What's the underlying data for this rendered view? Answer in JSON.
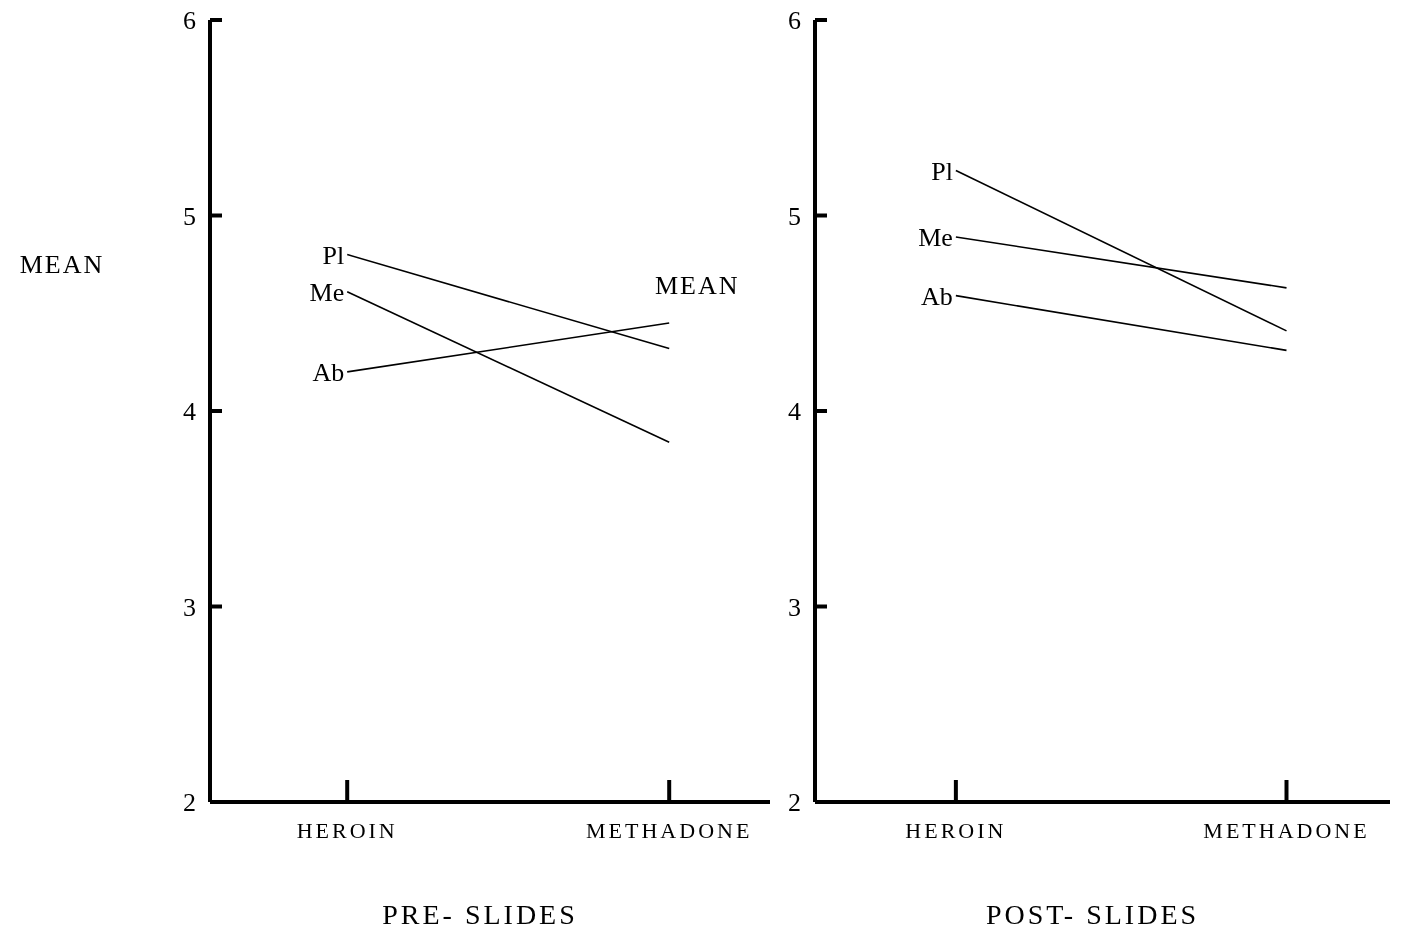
{
  "chart_data": [
    {
      "type": "line",
      "xlabel": "PRE- SLIDES",
      "ylabel": "MEAN",
      "categories": [
        "HEROIN",
        "METHADONE"
      ],
      "ylim": [
        2,
        6
      ],
      "yticks": [
        2,
        3,
        4,
        5,
        6
      ],
      "grid": false,
      "marker": "none",
      "line_style": "solid",
      "annotations": [
        "MEAN"
      ],
      "series": [
        {
          "name": "Pl",
          "color": "#000000",
          "values": [
            4.8,
            4.32
          ]
        },
        {
          "name": "Me",
          "color": "#000000",
          "values": [
            4.61,
            3.84
          ]
        },
        {
          "name": "Ab",
          "color": "#000000",
          "values": [
            4.2,
            4.45
          ]
        }
      ]
    },
    {
      "type": "line",
      "xlabel": "POST- SLIDES",
      "categories": [
        "HEROIN",
        "METHADONE"
      ],
      "ylim": [
        2,
        6
      ],
      "yticks": [
        2,
        3,
        4,
        5,
        6
      ],
      "grid": false,
      "marker": "none",
      "line_style": "solid",
      "series": [
        {
          "name": "Pl",
          "color": "#000000",
          "values": [
            5.23,
            4.41
          ]
        },
        {
          "name": "Me",
          "color": "#000000",
          "values": [
            4.89,
            4.63
          ]
        },
        {
          "name": "Ab",
          "color": "#000000",
          "values": [
            4.59,
            4.31
          ]
        }
      ]
    }
  ]
}
